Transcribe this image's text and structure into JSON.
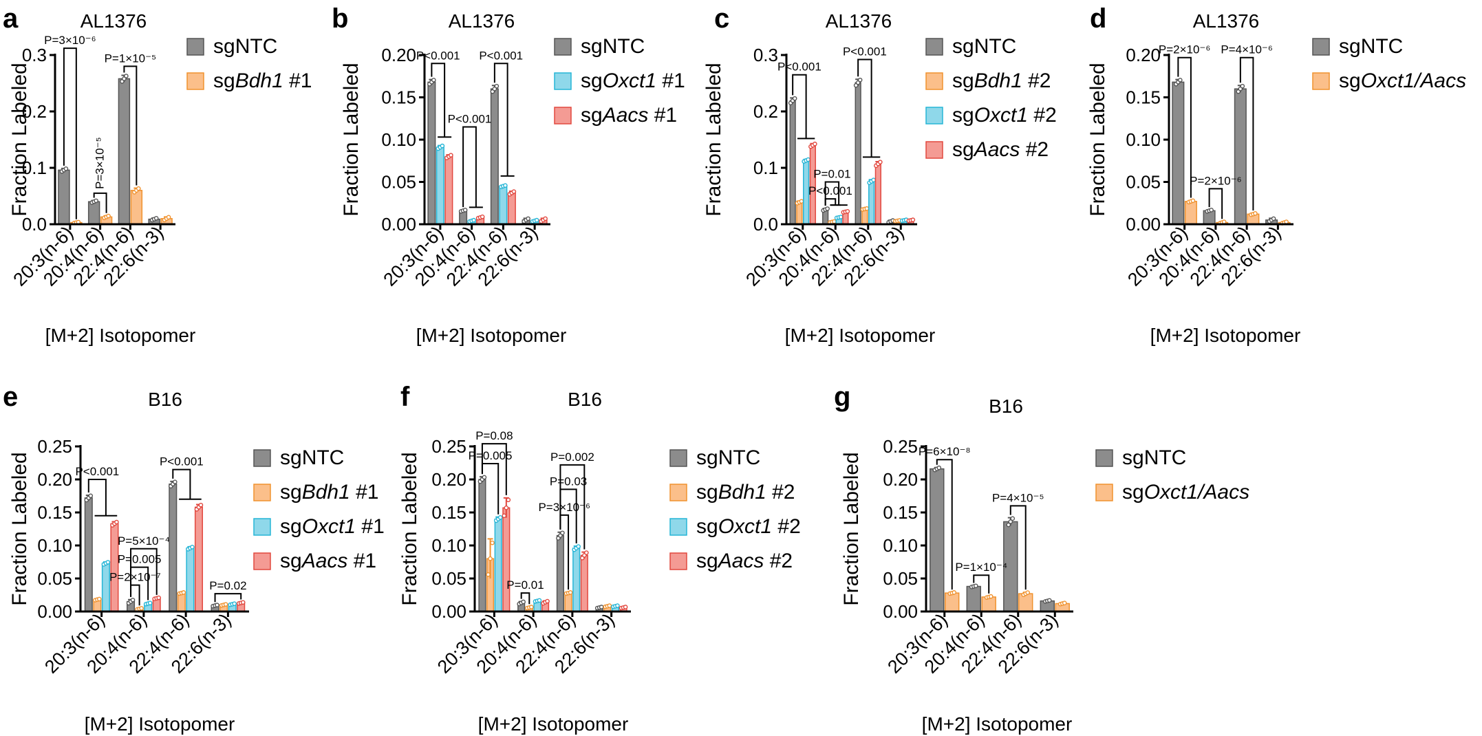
{
  "chart_data": [
    {
      "letter": "a",
      "type": "bar",
      "title": "AL1376",
      "xlabel": "[M+2] Isotopomer",
      "ylabel": "Fraction Labeled",
      "ylim": [
        0,
        0.3
      ],
      "yticks": [
        "0.0",
        "0.1",
        "0.2",
        "0.3"
      ],
      "ytick_values": [
        0,
        0.1,
        0.2,
        0.3
      ],
      "categories": [
        "20:3(n-6)",
        "20:4(n-6)",
        "22:4(n-6)",
        "22:6(n-3)"
      ],
      "series": [
        {
          "name": "sgNTC",
          "name_plain": "sg",
          "name_italic": "",
          "name_suffix": "NTC",
          "color": "#8c8c8c",
          "edge": "#555555",
          "values": [
            0.096,
            0.04,
            0.258,
            0.009
          ],
          "err": [
            0.003,
            0.002,
            0.006,
            0.002
          ]
        },
        {
          "name": "sgBdh1 #1",
          "name_plain": "sg",
          "name_italic": "Bdh1",
          "name_suffix": " #1",
          "color": "#fbbf8a",
          "edge": "#f0922e",
          "values": [
            0.003,
            0.013,
            0.06,
            0.01
          ],
          "err": [
            0.001,
            0.002,
            0.004,
            0.003
          ]
        }
      ],
      "pvalues": [
        {
          "text": "P=3×10⁻⁶",
          "cat": 0,
          "s1": 0,
          "s2": 1,
          "level": 0.312
        },
        {
          "text": "P=3×10⁻⁵",
          "cat": 1,
          "s1": 0,
          "s2": 1,
          "level": 0.055,
          "vertical": true
        },
        {
          "text": "P=1×10⁻⁵",
          "cat": 2,
          "s1": 0,
          "s2": 1,
          "level": 0.28
        }
      ]
    },
    {
      "letter": "b",
      "type": "bar",
      "title": "AL1376",
      "xlabel": "[M+2] Isotopomer",
      "ylabel": "Fraction Labeled",
      "ylim": [
        0,
        0.2
      ],
      "yticks": [
        "0.00",
        "0.05",
        "0.10",
        "0.15",
        "0.20"
      ],
      "ytick_values": [
        0,
        0.05,
        0.1,
        0.15,
        0.2
      ],
      "categories": [
        "20:3(n-6)",
        "20:4(n-6)",
        "22:4(n-6)",
        "22:6(n-3)"
      ],
      "series": [
        {
          "name": "sgNTC",
          "name_plain": "sg",
          "name_italic": "",
          "name_suffix": "NTC",
          "color": "#8c8c8c",
          "edge": "#555555",
          "values": [
            0.168,
            0.016,
            0.16,
            0.005
          ],
          "err": [
            0.003,
            0.001,
            0.004,
            0.002
          ]
        },
        {
          "name": "sgOxct1 #1",
          "name_plain": "sg",
          "name_italic": "Oxct1",
          "name_suffix": " #1",
          "color": "#8fd8ea",
          "edge": "#25b5d6",
          "values": [
            0.091,
            0.004,
            0.045,
            0.004
          ],
          "err": [
            0.002,
            0.001,
            0.001,
            0.001
          ]
        },
        {
          "name": "sgAacs #1",
          "name_plain": "sg",
          "name_italic": "Aacs",
          "name_suffix": " #1",
          "color": "#f49b94",
          "edge": "#e2483f",
          "values": [
            0.08,
            0.008,
            0.037,
            0.005
          ],
          "err": [
            0.002,
            0.001,
            0.002,
            0.002
          ]
        }
      ],
      "pvalues": [
        {
          "text": "P<0.001",
          "cat": 0,
          "s1": 0,
          "s2": 2,
          "level": 0.19,
          "group": true
        },
        {
          "text": "P<0.001",
          "cat": 1,
          "s1": 0,
          "s2": 2,
          "level": 0.115,
          "group": true
        },
        {
          "text": "P<0.001",
          "cat": 2,
          "s1": 0,
          "s2": 2,
          "level": 0.19,
          "group": true
        }
      ]
    },
    {
      "letter": "c",
      "type": "bar",
      "title": "AL1376",
      "xlabel": "[M+2] Isotopomer",
      "ylabel": "Fraction Labeled",
      "ylim": [
        0,
        0.3
      ],
      "yticks": [
        "0.0",
        "0.1",
        "0.2",
        "0.3"
      ],
      "ytick_values": [
        0,
        0.1,
        0.2,
        0.3
      ],
      "categories": [
        "20:3(n-6)",
        "20:4(n-6)",
        "22:4(n-6)",
        "22:6(n-3)"
      ],
      "series": [
        {
          "name": "sgNTC",
          "name_plain": "sg",
          "name_italic": "",
          "name_suffix": "NTC",
          "color": "#8c8c8c",
          "edge": "#555555",
          "values": [
            0.219,
            0.026,
            0.251,
            0.005
          ],
          "err": [
            0.005,
            0.002,
            0.006,
            0.002
          ]
        },
        {
          "name": "sgBdh1 #2",
          "name_plain": "sg",
          "name_italic": "Bdh1",
          "name_suffix": " #2",
          "color": "#fbbf8a",
          "edge": "#f0922e",
          "values": [
            0.039,
            0.004,
            0.027,
            0.006
          ],
          "err": [
            0.002,
            0.001,
            0.001,
            0.001
          ]
        },
        {
          "name": "sgOxct1 #2",
          "name_plain": "sg",
          "name_italic": "Oxct1",
          "name_suffix": " #2",
          "color": "#8fd8ea",
          "edge": "#25b5d6",
          "values": [
            0.113,
            0.012,
            0.076,
            0.007
          ],
          "err": [
            0.002,
            0.001,
            0.003,
            0.001
          ]
        },
        {
          "name": "sgAacs #2",
          "name_plain": "sg",
          "name_italic": "Aacs",
          "name_suffix": " #2",
          "color": "#f49b94",
          "edge": "#e2483f",
          "values": [
            0.14,
            0.022,
            0.107,
            0.007
          ],
          "err": [
            0.003,
            0.001,
            0.004,
            0.001
          ]
        }
      ],
      "pvalues": [
        {
          "text": "P<0.001",
          "cat": 0,
          "s1": 0,
          "s2": 3,
          "level": 0.265,
          "group": true
        },
        {
          "text": "P=0.01",
          "cat": 1,
          "s1": 0,
          "s2": 3,
          "level": 0.075,
          "group": true
        },
        {
          "text": "P<0.001",
          "cat": 1,
          "s1": 0,
          "s2": 2,
          "level": 0.045,
          "group": true
        },
        {
          "text": "P<0.001",
          "cat": 2,
          "s1": 0,
          "s2": 3,
          "level": 0.292,
          "group": true
        }
      ]
    },
    {
      "letter": "d",
      "type": "bar",
      "title": "AL1376",
      "xlabel": "[M+2] Isotopomer",
      "ylabel": "Fraction Labeled",
      "ylim": [
        0,
        0.2
      ],
      "yticks": [
        "0.00",
        "0.05",
        "0.10",
        "0.15",
        "0.20"
      ],
      "ytick_values": [
        0,
        0.05,
        0.1,
        0.15,
        0.2
      ],
      "categories": [
        "20:3(n-6)",
        "20:4(n-6)",
        "22:4(n-6)",
        "22:6(n-3)"
      ],
      "series": [
        {
          "name": "sgNTC",
          "name_plain": "sg",
          "name_italic": "",
          "name_suffix": "NTC",
          "color": "#8c8c8c",
          "edge": "#555555",
          "values": [
            0.168,
            0.016,
            0.16,
            0.005
          ],
          "err": [
            0.003,
            0.001,
            0.004,
            0.002
          ]
        },
        {
          "name": "sgOxct1/Aacs",
          "name_plain": "sg",
          "name_italic": "Oxct1/Aacs",
          "name_suffix": "",
          "color": "#fbbf8a",
          "edge": "#f0922e",
          "values": [
            0.027,
            0.002,
            0.012,
            0.002
          ],
          "err": [
            0.001,
            0.001,
            0.001,
            0.001
          ]
        }
      ],
      "pvalues": [
        {
          "text": "P=2×10⁻⁶",
          "cat": 0,
          "s1": 0,
          "s2": 1,
          "level": 0.197
        },
        {
          "text": "P=2×10⁻⁶",
          "cat": 1,
          "s1": 0,
          "s2": 1,
          "level": 0.042
        },
        {
          "text": "P=4×10⁻⁶",
          "cat": 2,
          "s1": 0,
          "s2": 1,
          "level": 0.197
        }
      ]
    },
    {
      "letter": "e",
      "type": "bar",
      "title": "B16",
      "xlabel": "[M+2] Isotopomer",
      "ylabel": "Fraction Labeled",
      "ylim": [
        0,
        0.25
      ],
      "yticks": [
        "0.00",
        "0.05",
        "0.10",
        "0.15",
        "0.20",
        "0.25"
      ],
      "ytick_values": [
        0,
        0.05,
        0.1,
        0.15,
        0.2,
        0.25
      ],
      "categories": [
        "20:3(n-6)",
        "20:4(n-6)",
        "22:4(n-6)",
        "22:6(n-3)"
      ],
      "series": [
        {
          "name": "sgNTC",
          "name_plain": "sg",
          "name_italic": "",
          "name_suffix": "NTC",
          "color": "#8c8c8c",
          "edge": "#555555",
          "values": [
            0.172,
            0.015,
            0.193,
            0.009
          ],
          "err": [
            0.004,
            0.003,
            0.004,
            0.001
          ]
        },
        {
          "name": "sgBdh1 #1",
          "name_plain": "sg",
          "name_italic": "Bdh1",
          "name_suffix": " #1",
          "color": "#fbbf8a",
          "edge": "#f0922e",
          "values": [
            0.018,
            0.004,
            0.028,
            0.01
          ],
          "err": [
            0.001,
            0.001,
            0.001,
            0.001
          ]
        },
        {
          "name": "sgOxct1 #1",
          "name_plain": "sg",
          "name_italic": "Oxct1",
          "name_suffix": " #1",
          "color": "#8fd8ea",
          "edge": "#25b5d6",
          "values": [
            0.073,
            0.012,
            0.096,
            0.011
          ],
          "err": [
            0.002,
            0.001,
            0.002,
            0.001
          ]
        },
        {
          "name": "sgAacs #1",
          "name_plain": "sg",
          "name_italic": "Aacs",
          "name_suffix": " #1",
          "color": "#f49b94",
          "edge": "#e2483f",
          "values": [
            0.133,
            0.02,
            0.158,
            0.013
          ],
          "err": [
            0.003,
            0.001,
            0.004,
            0.001
          ]
        }
      ],
      "pvalues": [
        {
          "text": "P<0.001",
          "cat": 0,
          "s1": 0,
          "s2": 3,
          "level": 0.2,
          "group": true
        },
        {
          "text": "P=5×10⁻⁴",
          "cat": 1,
          "s1": 0,
          "s2": 3,
          "level": 0.095
        },
        {
          "text": "P=0.005",
          "cat": 1,
          "s1": 0,
          "s2": 2,
          "level": 0.067
        },
        {
          "text": "P=2×10⁻⁷",
          "cat": 1,
          "s1": 0,
          "s2": 1,
          "level": 0.04
        },
        {
          "text": "P<0.001",
          "cat": 2,
          "s1": 0,
          "s2": 3,
          "level": 0.215,
          "group": true
        },
        {
          "text": "P=0.02",
          "cat": 3,
          "s1": 0,
          "s2": 3,
          "level": 0.027
        }
      ]
    },
    {
      "letter": "f",
      "type": "bar",
      "title": "B16",
      "xlabel": "[M+2] Isotopomer",
      "ylabel": "Fraction Labeled",
      "ylim": [
        0,
        0.25
      ],
      "yticks": [
        "0.00",
        "0.05",
        "0.10",
        "0.15",
        "0.20",
        "0.25"
      ],
      "ytick_values": [
        0,
        0.05,
        0.1,
        0.15,
        0.2,
        0.25
      ],
      "categories": [
        "20:3(n-6)",
        "20:4(n-6)",
        "22:4(n-6)",
        "22:6(n-3)"
      ],
      "series": [
        {
          "name": "sgNTC",
          "name_plain": "sg",
          "name_italic": "",
          "name_suffix": "NTC",
          "color": "#8c8c8c",
          "edge": "#555555",
          "values": [
            0.2,
            0.013,
            0.115,
            0.006
          ],
          "err": [
            0.004,
            0.002,
            0.005,
            0.001
          ]
        },
        {
          "name": "sgBdh1 #2",
          "name_plain": "sg",
          "name_italic": "Bdh1",
          "name_suffix": " #2",
          "color": "#fbbf8a",
          "edge": "#f0922e",
          "values": [
            0.08,
            0.006,
            0.028,
            0.008
          ],
          "err": [
            0.03,
            0.001,
            0.001,
            0.001
          ]
        },
        {
          "name": "sgOxct1 #2",
          "name_plain": "sg",
          "name_italic": "Oxct1",
          "name_suffix": " #2",
          "color": "#8fd8ea",
          "edge": "#25b5d6",
          "values": [
            0.14,
            0.016,
            0.096,
            0.008
          ],
          "err": [
            0.003,
            0.001,
            0.003,
            0.001
          ]
        },
        {
          "name": "sgAacs #2",
          "name_plain": "sg",
          "name_italic": "Aacs",
          "name_suffix": " #2",
          "color": "#f49b94",
          "edge": "#e2483f",
          "values": [
            0.157,
            0.014,
            0.085,
            0.006
          ],
          "err": [
            0.015,
            0.002,
            0.005,
            0.001
          ]
        }
      ],
      "pvalues": [
        {
          "text": "P=0.08",
          "cat": 0,
          "s1": 0,
          "s2": 3,
          "level": 0.254
        },
        {
          "text": "P=0.005",
          "cat": 0,
          "s1": 0,
          "s2": 2,
          "level": 0.224
        },
        {
          "text": "P=0.01",
          "cat": 1,
          "s1": 0,
          "s2": 1,
          "level": 0.028
        },
        {
          "text": "P=0.002",
          "cat": 2,
          "s1": 0,
          "s2": 3,
          "level": 0.222
        },
        {
          "text": "P=0.03",
          "cat": 2,
          "s1": 0,
          "s2": 2,
          "level": 0.185
        },
        {
          "text": "P=3×10⁻⁶",
          "cat": 2,
          "s1": 0,
          "s2": 1,
          "level": 0.146
        }
      ]
    },
    {
      "letter": "g",
      "type": "bar",
      "title": "B16",
      "xlabel": "[M+2] Isotopomer",
      "ylabel": "Fraction Labeled",
      "ylim": [
        0,
        0.25
      ],
      "yticks": [
        "0.00",
        "0.05",
        "0.10",
        "0.15",
        "0.20",
        "0.25"
      ],
      "ytick_values": [
        0,
        0.05,
        0.1,
        0.15,
        0.2,
        0.25
      ],
      "categories": [
        "20:3(n-6)",
        "20:4(n-6)",
        "22:4(n-6)",
        "22:6(n-3)"
      ],
      "series": [
        {
          "name": "sgNTC",
          "name_plain": "sg",
          "name_italic": "",
          "name_suffix": "NTC",
          "color": "#8c8c8c",
          "edge": "#555555",
          "values": [
            0.216,
            0.038,
            0.136,
            0.016
          ],
          "err": [
            0.002,
            0.001,
            0.006,
            0.001
          ]
        },
        {
          "name": "sgOxct1/Aacs",
          "name_plain": "sg",
          "name_italic": "Oxct1/Aacs",
          "name_suffix": "",
          "color": "#fbbf8a",
          "edge": "#f0922e",
          "values": [
            0.028,
            0.022,
            0.027,
            0.012
          ],
          "err": [
            0.001,
            0.001,
            0.002,
            0.001
          ]
        }
      ],
      "pvalues": [
        {
          "text": "P=6×10⁻⁸",
          "cat": 0,
          "s1": 0,
          "s2": 1,
          "level": 0.23
        },
        {
          "text": "P=1×10⁻⁴",
          "cat": 1,
          "s1": 0,
          "s2": 1,
          "level": 0.055
        },
        {
          "text": "P=4×10⁻⁵",
          "cat": 2,
          "s1": 0,
          "s2": 1,
          "level": 0.16
        }
      ]
    }
  ]
}
